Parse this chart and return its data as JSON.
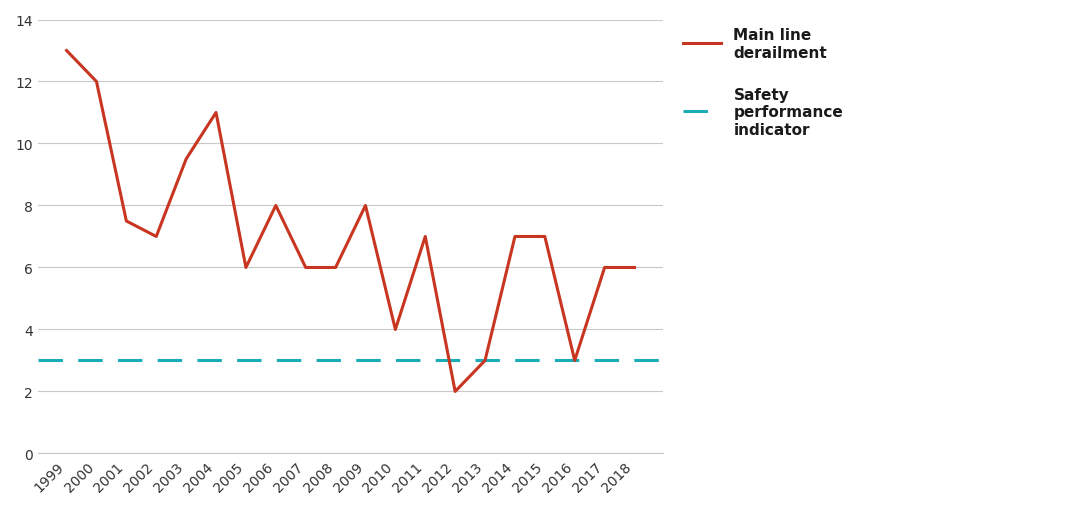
{
  "years": [
    1999,
    2000,
    2001,
    2002,
    2003,
    2004,
    2005,
    2006,
    2007,
    2008,
    2009,
    2010,
    2011,
    2012,
    2013,
    2014,
    2015,
    2016,
    2017,
    2018
  ],
  "derailments": [
    13,
    12,
    7.5,
    7,
    9.5,
    11,
    6,
    8,
    6,
    6,
    8,
    4,
    7,
    2,
    3,
    7,
    7,
    3,
    6,
    6
  ],
  "spi_value": 3,
  "derailment_color": "#C83520",
  "spi_color": "#1AACB8",
  "background_color": "#ffffff",
  "grid_color": "#C8C8C8",
  "ylim": [
    0,
    14
  ],
  "yticks": [
    0,
    2,
    4,
    6,
    8,
    10,
    12,
    14
  ],
  "legend_label_derailment": "Main line\nderailment",
  "legend_label_spi": "Safety\nperformance\nindicator",
  "line_width": 2.2,
  "spi_linewidth": 2.2,
  "tick_fontsize": 10,
  "legend_fontsize": 11
}
